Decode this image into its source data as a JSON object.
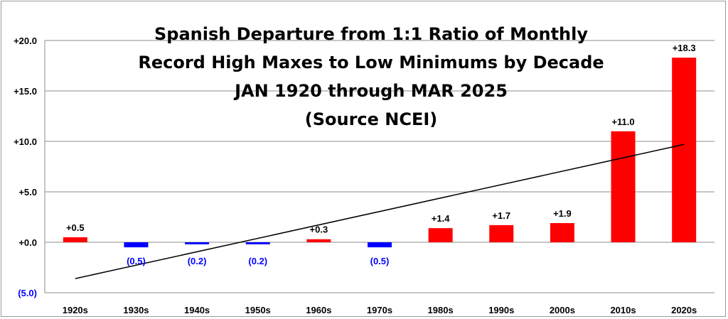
{
  "chart_data": {
    "type": "bar",
    "title_lines": [
      "Spanish Departure from 1:1 Ratio of Monthly",
      "Record High Maxes to Low Minimums by Decade",
      "JAN 1920 through MAR 2025",
      "(Source NCEI)"
    ],
    "categories": [
      "1920s",
      "1930s",
      "1940s",
      "1950s",
      "1960s",
      "1970s",
      "1980s",
      "1990s",
      "2000s",
      "2010s",
      "2020s"
    ],
    "values": [
      0.5,
      -0.5,
      -0.2,
      -0.2,
      0.3,
      -0.5,
      1.4,
      1.7,
      1.9,
      11.0,
      18.3
    ],
    "data_labels": [
      "+0.5",
      "(0.5)",
      "(0.2)",
      "(0.2)",
      "+0.3",
      "(0.5)",
      "+1.4",
      "+1.7",
      "+1.9",
      "+11.0",
      "+18.3"
    ],
    "yticks": [
      -5,
      0,
      5,
      10,
      15,
      20
    ],
    "ytick_labels": [
      "(5.0)",
      "+0.0",
      "+5.0",
      "+10.0",
      "+15.0",
      "+20.0"
    ],
    "ylim": [
      -5,
      20
    ],
    "xlabel": "",
    "ylabel": "",
    "grid": true,
    "legend": "none",
    "trendline": {
      "type": "linear",
      "start": -3.6,
      "end": 9.7
    },
    "colors": {
      "positive": "#ff0000",
      "negative": "#0000ff",
      "gridline": "#8c8c8c",
      "trendline": "#000000",
      "positive_text": "#000000",
      "negative_text": "#0000ff"
    }
  }
}
